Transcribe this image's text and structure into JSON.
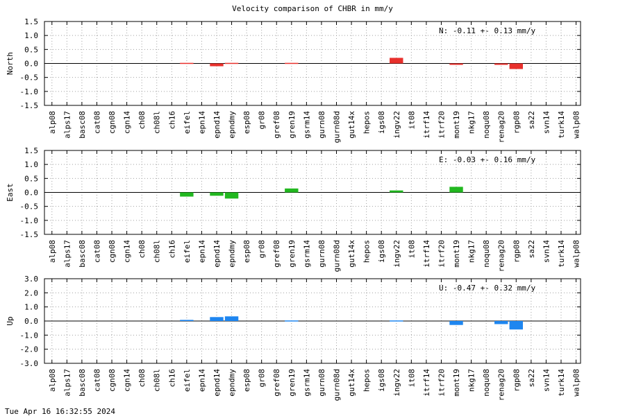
{
  "figure": {
    "title": "Velocity comparison of CHBR in mm/y",
    "footer": "Tue Apr 16 16:32:55 2024"
  },
  "chart_data": [
    {
      "type": "bar",
      "ylabel": "North",
      "ylim": [
        -1.5,
        1.5
      ],
      "yticks": [
        1.5,
        1.0,
        0.5,
        0.0,
        -0.5,
        -1.0,
        -1.5
      ],
      "ytick_labels": [
        "1.5",
        "1.0",
        "0.5",
        "0.0",
        "-0.5",
        "-1.0",
        "-1.5"
      ],
      "grid": true,
      "color": "#e8302c",
      "annotation": "N:  -0.11 +-  0.13 mm/y",
      "categories": [
        "alp08",
        "alps17",
        "basc08",
        "cat08",
        "cgn08",
        "cgn14",
        "ch08",
        "ch08l",
        "ch16",
        "eifel",
        "epn14",
        "epnd14",
        "epndmy",
        "esp08",
        "gr08",
        "gref08",
        "gren19",
        "gsrm14",
        "gurn08",
        "gurn08d",
        "gut14x",
        "hepos",
        "igs08",
        "ingv22",
        "it08",
        "itrf14",
        "itrf20",
        "mont19",
        "nkg17",
        "noqu08",
        "renag20",
        "rgp08",
        "sa22",
        "svn14",
        "turk14",
        "walp08"
      ],
      "values": [
        0,
        0,
        0,
        0,
        0,
        0,
        0,
        0,
        0,
        0.02,
        0,
        -0.1,
        0.02,
        0,
        0,
        0,
        0.02,
        0,
        0,
        0,
        0,
        0,
        0,
        0.2,
        0,
        0,
        0,
        -0.05,
        0,
        0,
        -0.05,
        -0.2,
        0,
        0,
        0,
        0
      ]
    },
    {
      "type": "bar",
      "ylabel": "East",
      "ylim": [
        -1.5,
        1.5
      ],
      "yticks": [
        1.5,
        1.0,
        0.5,
        0.0,
        -0.5,
        -1.0,
        -1.5
      ],
      "ytick_labels": [
        "1.5",
        "1.0",
        "0.5",
        "0.0",
        "-0.5",
        "-1.0",
        "-1.5"
      ],
      "grid": true,
      "color": "#22b820",
      "annotation": "E:  -0.03 +-  0.16 mm/y",
      "categories": [
        "alp08",
        "alps17",
        "basc08",
        "cat08",
        "cgn08",
        "cgn14",
        "ch08",
        "ch08l",
        "ch16",
        "eifel",
        "epn14",
        "epnd14",
        "epndmy",
        "esp08",
        "gr08",
        "gref08",
        "gren19",
        "gsrm14",
        "gurn08",
        "gurn08d",
        "gut14x",
        "hepos",
        "igs08",
        "ingv22",
        "it08",
        "itrf14",
        "itrf20",
        "mont19",
        "nkg17",
        "noqu08",
        "renag20",
        "rgp08",
        "sa22",
        "svn14",
        "turk14",
        "walp08"
      ],
      "values": [
        0,
        0,
        0,
        0,
        0,
        0,
        0,
        0,
        0,
        -0.15,
        0,
        -0.12,
        -0.22,
        0,
        0,
        0,
        0.14,
        0,
        0,
        0,
        0,
        0,
        0,
        0.07,
        0,
        0,
        0,
        0.2,
        0,
        0,
        0,
        0,
        0,
        0,
        0,
        0
      ]
    },
    {
      "type": "bar",
      "ylabel": "Up",
      "ylim": [
        -3.0,
        3.0
      ],
      "yticks": [
        3.0,
        2.0,
        1.0,
        0.0,
        -1.0,
        -2.0,
        -3.0
      ],
      "ytick_labels": [
        "3.0",
        "2.0",
        "1.0",
        "0.0",
        "-1.0",
        "-2.0",
        "-3.0"
      ],
      "grid": true,
      "color": "#1e86f0",
      "annotation": "U:  -0.47 +-  0.32 mm/y",
      "categories": [
        "alp08",
        "alps17",
        "basc08",
        "cat08",
        "cgn08",
        "cgn14",
        "ch08",
        "ch08l",
        "ch16",
        "eifel",
        "epn14",
        "epnd14",
        "epndmy",
        "esp08",
        "gr08",
        "gref08",
        "gren19",
        "gsrm14",
        "gurn08",
        "gurn08d",
        "gut14x",
        "hepos",
        "igs08",
        "ingv22",
        "it08",
        "itrf14",
        "itrf20",
        "mont19",
        "nkg17",
        "noqu08",
        "renag20",
        "rgp08",
        "sa22",
        "svn14",
        "turk14",
        "walp08"
      ],
      "values": [
        0,
        0,
        0,
        0,
        0,
        0,
        0,
        0,
        0,
        0.08,
        0,
        0.28,
        0.33,
        0,
        0,
        0,
        0.04,
        0,
        0,
        0,
        0,
        0,
        0,
        0.04,
        0,
        0,
        0,
        -0.28,
        0,
        0,
        -0.22,
        -0.6,
        0,
        0,
        0,
        0
      ]
    }
  ]
}
